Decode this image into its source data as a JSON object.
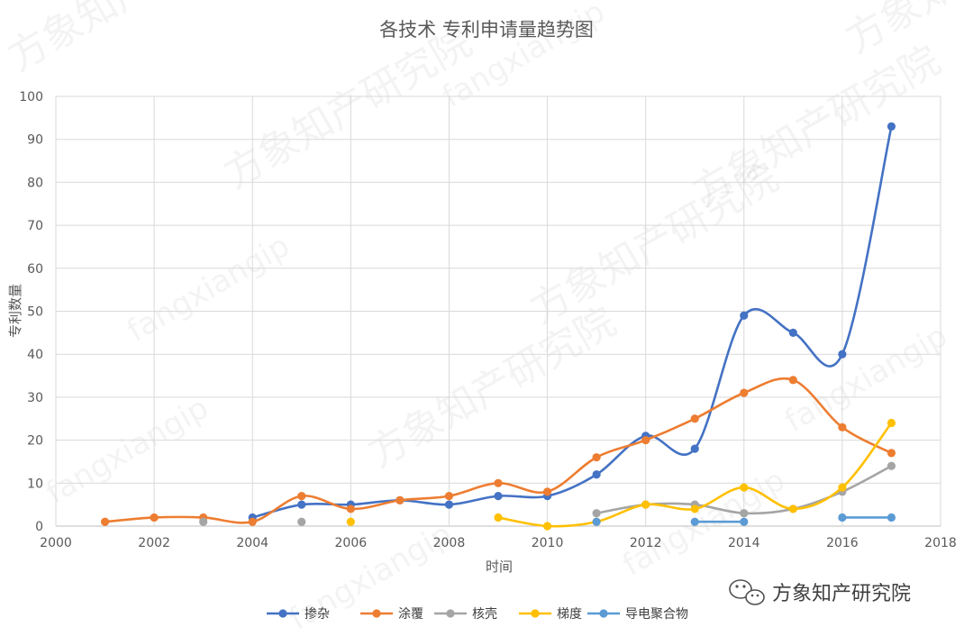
{
  "chart_data": {
    "type": "line",
    "title": "各技术 专利申请量趋势图",
    "xlabel": "时间",
    "ylabel": "专利数量",
    "xlim": [
      2000,
      2018
    ],
    "ylim": [
      0,
      100
    ],
    "x_ticks": [
      2000,
      2002,
      2004,
      2006,
      2008,
      2010,
      2012,
      2014,
      2016,
      2018
    ],
    "y_ticks": [
      0,
      10,
      20,
      30,
      40,
      50,
      60,
      70,
      80,
      90,
      100
    ],
    "grid": true,
    "smooth": true,
    "legend_position": "bottom",
    "series": [
      {
        "name": "掺杂",
        "color": "#4472C4",
        "points": [
          [
            2004,
            2
          ],
          [
            2005,
            5
          ],
          [
            2006,
            5
          ],
          [
            2007,
            6
          ],
          [
            2008,
            5
          ],
          [
            2009,
            7
          ],
          [
            2010,
            7
          ],
          [
            2011,
            12
          ],
          [
            2012,
            21
          ],
          [
            2013,
            18
          ],
          [
            2014,
            49
          ],
          [
            2015,
            45
          ],
          [
            2016,
            40
          ],
          [
            2017,
            93
          ]
        ]
      },
      {
        "name": "涂覆",
        "color": "#ED7D31",
        "points": [
          [
            2001,
            1
          ],
          [
            2002,
            2
          ],
          [
            2003,
            2
          ],
          [
            2004,
            1
          ],
          [
            2005,
            7
          ],
          [
            2006,
            4
          ],
          [
            2007,
            6
          ],
          [
            2008,
            7
          ],
          [
            2009,
            10
          ],
          [
            2010,
            8
          ],
          [
            2011,
            16
          ],
          [
            2012,
            20
          ],
          [
            2013,
            25
          ],
          [
            2014,
            31
          ],
          [
            2015,
            34
          ],
          [
            2016,
            23
          ],
          [
            2017,
            17
          ]
        ]
      },
      {
        "name": "核壳",
        "color": "#A5A5A5",
        "points": [
          [
            2003,
            1
          ]
        ],
        "isolated": [
          [
            2005,
            1
          ]
        ],
        "segments": [
          [
            [
              2003,
              1
            ]
          ],
          [
            [
              2005,
              1
            ]
          ],
          [
            [
              2011,
              3
            ],
            [
              2012,
              5
            ],
            [
              2013,
              5
            ],
            [
              2014,
              3
            ],
            [
              2015,
              4
            ],
            [
              2016,
              8
            ],
            [
              2017,
              14
            ]
          ]
        ]
      },
      {
        "name": "梯度",
        "color": "#FFC000",
        "segments": [
          [
            [
              2006,
              1
            ]
          ],
          [
            [
              2009,
              2
            ],
            [
              2010,
              0
            ],
            [
              2011,
              1
            ],
            [
              2012,
              5
            ],
            [
              2013,
              4
            ],
            [
              2014,
              9
            ],
            [
              2015,
              4
            ],
            [
              2016,
              9
            ],
            [
              2017,
              24
            ]
          ]
        ]
      },
      {
        "name": "导电聚合物",
        "color": "#5B9BD5",
        "segments": [
          [
            [
              2011,
              1
            ]
          ],
          [
            [
              2013,
              1
            ],
            [
              2014,
              1
            ]
          ],
          [
            [
              2016,
              2
            ],
            [
              2017,
              2
            ]
          ]
        ]
      }
    ]
  },
  "watermark": {
    "text_cn": "方象知产研究院",
    "text_en": "fangxiangip"
  },
  "brand": {
    "icon": "wechat-icon",
    "text": "方象知产研究院"
  }
}
